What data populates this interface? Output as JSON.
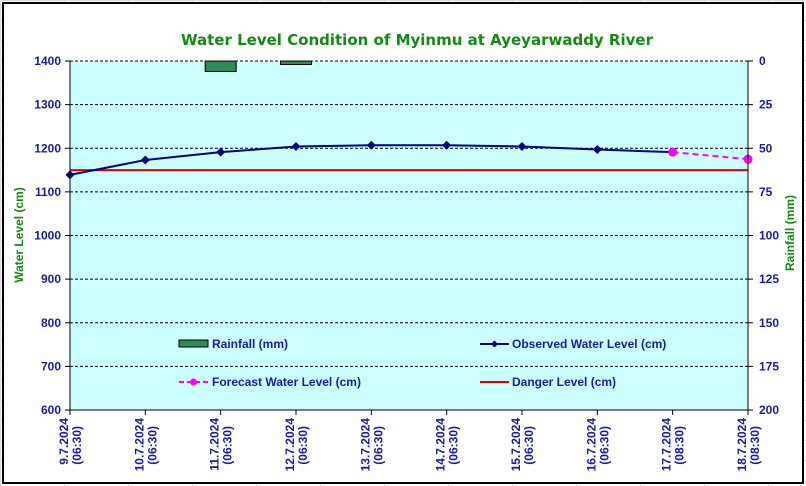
{
  "chart_data": {
    "type": "line",
    "title": "Water Level Condition of Myinmu at Ayeyarwaddy River",
    "ylabel": "Water Level (cm)",
    "y2label": "Rainfall (mm)",
    "ylim": [
      600,
      1400
    ],
    "y2lim": [
      200,
      0
    ],
    "yticks": [
      "600",
      "700",
      "800",
      "900",
      "1000",
      "1100",
      "1200",
      "1300",
      "1400"
    ],
    "y2ticks": [
      "200",
      "175",
      "150",
      "125",
      "100",
      "75",
      "50",
      "25",
      "0"
    ],
    "grid": true,
    "categories": [
      [
        "9.7.2024",
        "(06:30)"
      ],
      [
        "10.7.2024",
        "(06:30)"
      ],
      [
        "11.7.2024",
        "(06:30)"
      ],
      [
        "12.7.2024",
        "(06:30)"
      ],
      [
        "13.7.2024",
        "(06:30)"
      ],
      [
        "14.7.2024",
        "(06:30)"
      ],
      [
        "15.7.2024",
        "(06:30)"
      ],
      [
        "16.7.2024",
        "(06:30)"
      ],
      [
        "17.7.2024",
        "(08:30)"
      ],
      [
        "18.7.2024",
        "(08:30)"
      ]
    ],
    "series": [
      {
        "name": "Rainfall (mm)",
        "kind": "bar",
        "axis": "right",
        "color": "#2e8b57",
        "values": [
          0,
          0,
          6,
          2,
          0,
          0,
          0,
          0,
          0,
          null
        ]
      },
      {
        "name": "Observed Water Level (cm)",
        "kind": "line",
        "axis": "left",
        "color": "#000080",
        "values": [
          1139,
          1173,
          1191,
          1204,
          1207,
          1207,
          1204,
          1197,
          1191,
          null
        ]
      },
      {
        "name": "Forecast Water Level (cm)",
        "kind": "dashed-line",
        "axis": "left",
        "color": "#ff00ff",
        "values": [
          null,
          null,
          null,
          null,
          null,
          null,
          null,
          null,
          1191,
          1175
        ]
      },
      {
        "name": "Danger Level (cm)",
        "kind": "line",
        "axis": "left",
        "color": "#e00000",
        "values": [
          1150,
          1150,
          1150,
          1150,
          1150,
          1150,
          1150,
          1150,
          1150,
          1150
        ]
      }
    ],
    "legend_position": "bottom-inside",
    "colors": {
      "plot_bg": "#ccffff",
      "text": "#1a1aa6",
      "title": "#138a13"
    }
  }
}
